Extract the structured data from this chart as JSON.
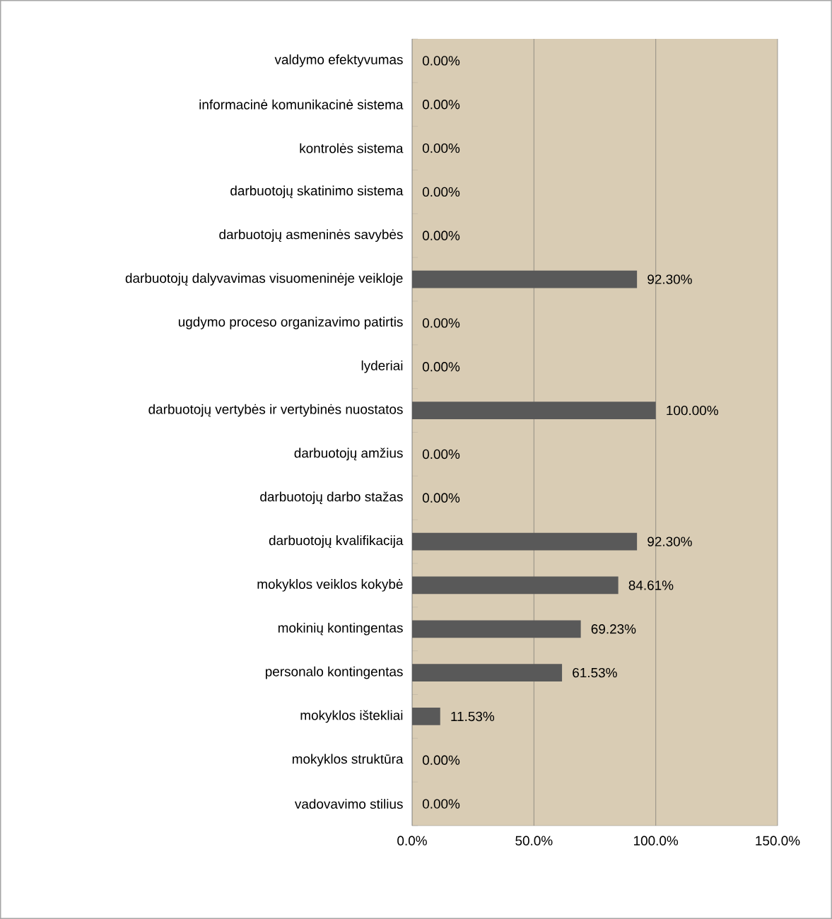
{
  "chart_data": {
    "type": "bar",
    "orientation": "horizontal",
    "categories": [
      "valdymo efektyvumas",
      "informacinė komunikacinė sistema",
      "kontrolės sistema",
      "darbuotojų skatinimo sistema",
      "darbuotojų asmeninės savybės",
      "darbuotojų dalyvavimas visuomeninėje veikloje",
      "ugdymo proceso organizavimo patirtis",
      "lyderiai",
      "darbuotojų vertybės ir vertybinės nuostatos",
      "darbuotojų amžius",
      "darbuotojų darbo stažas",
      "darbuotojų kvalifikacija",
      "mokyklos veiklos kokybė",
      "mokinių kontingentas",
      "personalo kontingentas",
      "mokyklos ištekliai",
      "mokyklos struktūra",
      "vadovavimo stilius"
    ],
    "values": [
      0,
      0,
      0,
      0,
      0,
      92.3,
      0,
      0,
      100,
      0,
      0,
      92.3,
      84.61,
      69.23,
      61.53,
      11.53,
      0,
      0
    ],
    "value_labels": [
      "0.00%",
      "0.00%",
      "0.00%",
      "0.00%",
      "0.00%",
      "92.30%",
      "0.00%",
      "0.00%",
      "100.00%",
      "0.00%",
      "0.00%",
      "92.30%",
      "84.61%",
      "69.23%",
      "61.53%",
      "11.53%",
      "0.00%",
      "0.00%"
    ],
    "color": "#595959",
    "xlim": [
      0,
      150
    ],
    "xticks": [
      {
        "value": 0,
        "label": "0.0%"
      },
      {
        "value": 50,
        "label": "50.0%"
      },
      {
        "value": 100,
        "label": "100.0%"
      },
      {
        "value": 150,
        "label": "150.0%"
      }
    ],
    "grid": "x"
  }
}
